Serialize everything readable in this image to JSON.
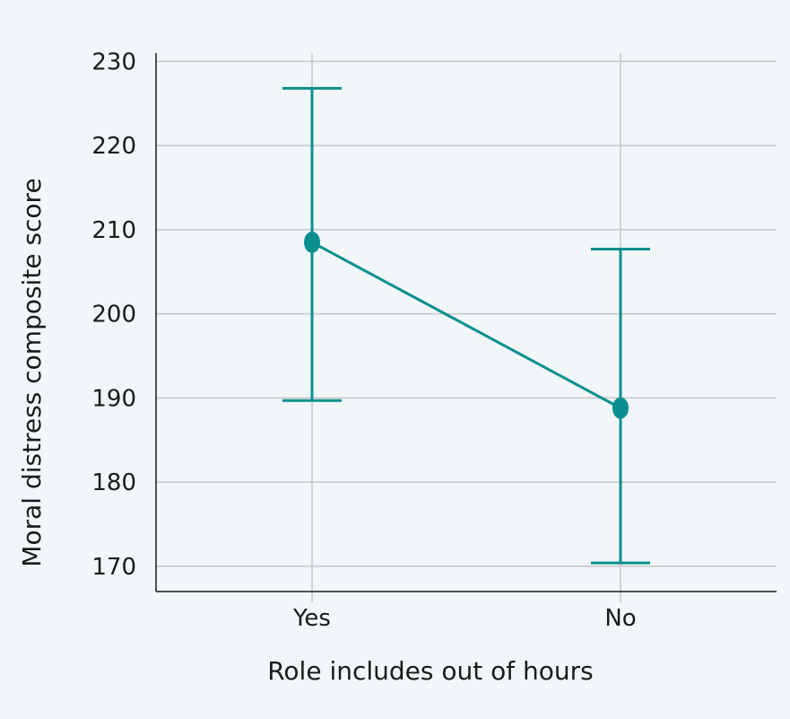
{
  "chart_data": {
    "type": "line",
    "categories": [
      "Yes",
      "No"
    ],
    "values": [
      208.5,
      188.8
    ],
    "error_low": [
      189.7,
      170.4
    ],
    "error_high": [
      226.8,
      207.7
    ],
    "xlabel": "Role includes out of hours",
    "ylabel": "Moral distress composite score",
    "ylim": [
      167,
      231
    ],
    "yticks": [
      170,
      180,
      190,
      200,
      210,
      220,
      230
    ],
    "grid": true,
    "color": "#0a8f8f"
  }
}
